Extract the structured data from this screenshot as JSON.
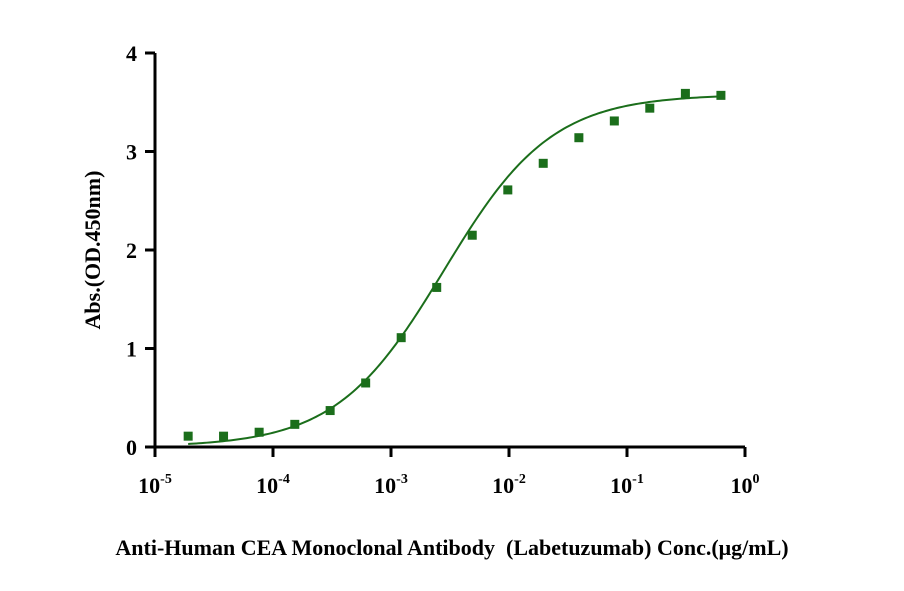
{
  "chart_data": {
    "type": "scatter",
    "xlabel": "Anti-Human CEA Monoclonal Antibody  (Labetuzumab) Conc.(μg/mL)",
    "ylabel": "Abs.(OD.450nm)",
    "x_scale": "log10",
    "xlim": [
      1e-05,
      1
    ],
    "ylim": [
      0,
      4
    ],
    "x_ticks": [
      {
        "base": "10",
        "exp": "-5",
        "value": 1e-05
      },
      {
        "base": "10",
        "exp": "-4",
        "value": 0.0001
      },
      {
        "base": "10",
        "exp": "-3",
        "value": 0.001
      },
      {
        "base": "10",
        "exp": "-2",
        "value": 0.01
      },
      {
        "base": "10",
        "exp": "-1",
        "value": 0.1
      },
      {
        "base": "10",
        "exp": "0",
        "value": 1
      }
    ],
    "y_ticks": [
      "0",
      "1",
      "2",
      "3",
      "4"
    ],
    "grid": false,
    "legend": "none",
    "point_color": "#1b6e1b",
    "line_color": "#1b6e1b",
    "series": [
      {
        "points": [
          {
            "x": 1.91e-05,
            "y": 0.11
          },
          {
            "x": 3.81e-05,
            "y": 0.11
          },
          {
            "x": 7.63e-05,
            "y": 0.15
          },
          {
            "x": 0.000153,
            "y": 0.23
          },
          {
            "x": 0.000305,
            "y": 0.37
          },
          {
            "x": 0.00061,
            "y": 0.65
          },
          {
            "x": 0.00122,
            "y": 1.11
          },
          {
            "x": 0.00244,
            "y": 1.62
          },
          {
            "x": 0.00488,
            "y": 2.15
          },
          {
            "x": 0.00977,
            "y": 2.61
          },
          {
            "x": 0.0195,
            "y": 2.88
          },
          {
            "x": 0.0391,
            "y": 3.14
          },
          {
            "x": 0.0781,
            "y": 3.31
          },
          {
            "x": 0.156,
            "y": 3.44
          },
          {
            "x": 0.3125,
            "y": 3.59
          },
          {
            "x": 0.625,
            "y": 3.57
          }
        ],
        "fit": {
          "type": "4PL",
          "bottom": 0.0,
          "top": 3.58,
          "ec50": 0.0028,
          "hill": 0.95
        }
      }
    ]
  }
}
